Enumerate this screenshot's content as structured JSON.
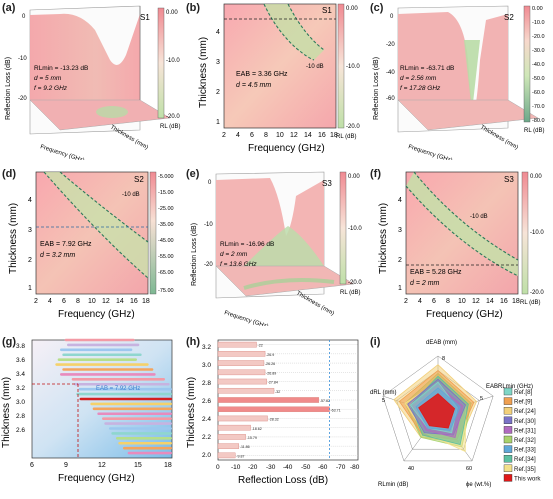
{
  "panels": {
    "a": {
      "label": "(a)",
      "sample": "S1",
      "zlabel": "Reflection Loss (dB)",
      "xlabel": "Frequency (GHz)",
      "ylabel": "Thickness (mm)",
      "zticks": [
        "0",
        "-10",
        "-20"
      ],
      "cbar_ticks": [
        "0.00",
        "-10.0",
        "-20.0"
      ],
      "cbar_label": "RL (dB)",
      "rl_min": "RLmin = -13.23 dB",
      "d": "d = 5 mm",
      "f": "f = 9.2 GHz"
    },
    "b": {
      "label": "(b)",
      "sample": "S1",
      "xlabel": "Frequency (GHz)",
      "ylabel": "Thickness (mm)",
      "xticks": [
        "2",
        "4",
        "6",
        "8",
        "10",
        "12",
        "14",
        "16",
        "18"
      ],
      "yticks": [
        "4",
        "3",
        "2",
        "1"
      ],
      "cbar_ticks": [
        "0.00",
        "-10.0",
        "-20.0"
      ],
      "cbar_label": "RL (dB)",
      "contour": "-10 dB",
      "eab": "EAB = 3.36 GHz",
      "d": "d = 4.5 mm"
    },
    "c": {
      "label": "(c)",
      "sample": "S2",
      "zlabel": "Reflection Loss (dB)",
      "xlabel": "Frequency (GHz)",
      "ylabel": "Thickness (mm)",
      "zticks": [
        "0",
        "-20",
        "-40",
        "-60"
      ],
      "cbar_ticks": [
        "0.00",
        "-10.0",
        "-20.0",
        "-30.0",
        "-40.0",
        "-50.0",
        "-60.0",
        "-70.0",
        "-80.0"
      ],
      "cbar_label": "RL (dB)",
      "rl_min": "RLmin = -63.71 dB",
      "d": "d = 2.56 mm",
      "f": "f = 17.28 GHz"
    },
    "d": {
      "label": "(d)",
      "sample": "S2",
      "xlabel": "Frequency (GHz)",
      "ylabel": "Thickness (mm)",
      "xticks": [
        "2",
        "4",
        "6",
        "8",
        "10",
        "12",
        "14",
        "16",
        "18"
      ],
      "yticks": [
        "4",
        "3",
        "2",
        "1"
      ],
      "cbar_ticks": [
        "-5.000",
        "-15.00",
        "-25.00",
        "-35.00",
        "-45.00",
        "-55.00",
        "-65.00",
        "-75.00"
      ],
      "contour": "-10 dB",
      "eab": "EAB = 7.92 GHz",
      "d": "d = 3.2 mm"
    },
    "e": {
      "label": "(e)",
      "sample": "S3",
      "zlabel": "Reflection Loss (dB)",
      "xlabel": "Frequency (GHz)",
      "ylabel": "Thickness (mm)",
      "zticks": [
        "0",
        "-10",
        "-20"
      ],
      "cbar_ticks": [
        "0.00",
        "-10.0",
        "-20.0"
      ],
      "cbar_label": "RL (dB)",
      "rl_min": "RLmin = -16.96 dB",
      "d": "d = 2 mm",
      "f": "f = 13.6 GHz"
    },
    "f": {
      "label": "(f)",
      "sample": "S3",
      "xlabel": "Frequency (GHz)",
      "ylabel": "Thickness (mm)",
      "xticks": [
        "2",
        "4",
        "6",
        "8",
        "10",
        "12",
        "14",
        "16",
        "18"
      ],
      "yticks": [
        "4",
        "3",
        "2",
        "1"
      ],
      "cbar_ticks": [
        "0.00",
        "-10.0",
        "-20.0"
      ],
      "cbar_label": "RL (dB)",
      "contour": "-10 dB",
      "eab": "EAB = 5.28 GHz",
      "d": "d = 2 mm"
    },
    "g": {
      "label": "(g)",
      "xlabel": "Frequency (GHz)",
      "ylabel": "Thickness (mm)",
      "xticks": [
        "6",
        "9",
        "12",
        "15",
        "18"
      ],
      "yticks": [
        "3.8",
        "3.6",
        "3.4",
        "3.2",
        "3.0",
        "2.8",
        "2.6"
      ],
      "annotation": "EAB = 7.92 GHz"
    },
    "h": {
      "label": "(h)",
      "xlabel": "Reflection Loss (dB)",
      "ylabel": "Thickness (mm)",
      "xticks": [
        "0",
        "-10",
        "-20",
        "-30",
        "-40",
        "-50",
        "-60",
        "-70",
        "-80"
      ],
      "yticks": [
        "3.2",
        "3.0",
        "2.8",
        "2.6",
        "2.4",
        "2.2",
        "2.0"
      ]
    },
    "i": {
      "label": "(i)",
      "axes": [
        "dEAB (mm)",
        "EABRLmin (GHz)",
        "ϕe (wt.%)",
        "RLmin (dB)",
        "dRL (mm)"
      ],
      "ring_values": [
        "8",
        "5",
        "60",
        "40",
        "5"
      ],
      "legend": [
        "Ref.[8]",
        "Ref.[9]",
        "Ref.[24]",
        "Ref.[30]",
        "Ref.[31]",
        "Ref.[32]",
        "Ref.[33]",
        "Ref.[34]",
        "Ref.[35]",
        "This work"
      ]
    }
  },
  "colors": {
    "map_pink": "#f2a2a8",
    "map_green": "#b7d9a4",
    "contour": "#2c7a5a",
    "this_work": "#e01818"
  },
  "chart_data": [
    {
      "type": "bar",
      "title": "",
      "xlabel": "Reflection Loss (dB)",
      "ylabel": "Thickness (mm)",
      "categories": [
        "3.2",
        "3.1",
        "3.0",
        "2.9",
        "2.8",
        "2.7",
        "2.6",
        "2.5",
        "2.4",
        "2.3",
        "2.2",
        "2.1",
        "2.0"
      ],
      "values": [
        -22,
        -26.9,
        -26.26,
        -26.89,
        -27.84,
        -32,
        -57.62,
        -63.71,
        -28.32,
        -18.62,
        -15.79,
        -11.86,
        -9.87
      ],
      "value_labels": [
        "-22",
        "-26.9",
        "-26.26",
        "-26.89",
        "-27.84",
        "-32",
        "-57.62",
        "-63.71",
        "-28.32",
        "-18.62",
        "-15.79",
        "-11.86",
        "-9.87"
      ],
      "label_overrides": {
        "3.1": "-26.9",
        "2.7": "-32",
        "2.6": "-57.62",
        "2.5": "-63.71"
      },
      "xlim": [
        0,
        -80
      ],
      "reference_line_x": -63.71
    },
    {
      "type": "bar",
      "title": "",
      "subtype": "range",
      "xlabel": "Frequency (GHz)",
      "ylabel": "Thickness (mm)",
      "categories": [
        "3.8",
        "3.75",
        "3.7",
        "3.65",
        "3.6",
        "3.55",
        "3.5",
        "3.45",
        "3.4",
        "3.35",
        "3.3",
        "3.25",
        "3.2",
        "3.15",
        "3.1",
        "3.05",
        "3.0",
        "2.95",
        "2.9",
        "2.85",
        "2.8",
        "2.75",
        "2.7",
        "2.65"
      ],
      "ranges": [
        [
          8.8,
          14.8
        ],
        [
          9.0,
          15.2
        ],
        [
          8.4,
          14.6
        ],
        [
          8.6,
          15.4
        ],
        [
          8.2,
          15.0
        ],
        [
          8.0,
          16.0
        ],
        [
          8.6,
          16.4
        ],
        [
          8.4,
          16.6
        ],
        [
          9.4,
          17.4
        ],
        [
          9.6,
          17.8
        ],
        [
          10.0,
          18.0
        ],
        [
          9.8,
          18.0
        ],
        [
          10.08,
          18.0
        ],
        [
          11.0,
          18.0
        ],
        [
          11.2,
          18.0
        ],
        [
          11.6,
          18.0
        ],
        [
          12.0,
          18.0
        ],
        [
          12.2,
          18.0
        ],
        [
          12.6,
          18.0
        ],
        [
          12.8,
          18.0
        ],
        [
          13.2,
          18.0
        ],
        [
          13.4,
          18.0
        ],
        [
          13.8,
          18.0
        ],
        [
          14.2,
          18.0
        ]
      ],
      "highlight_thickness": "3.2",
      "annotation": "EAB = 7.92 GHz",
      "xlim": [
        6,
        18
      ],
      "ylim": [
        2.6,
        3.8
      ]
    },
    {
      "type": "radar",
      "title": "",
      "axes": [
        "dEAB (mm)",
        "EABRLmin (GHz)",
        "ϕe (wt.%)",
        "RLmin (dB)",
        "dRL (mm)"
      ],
      "series": [
        {
          "name": "Ref.[8]",
          "color": "#7fd6c7",
          "values": [
            0.55,
            0.35,
            0.4,
            0.3,
            0.5
          ]
        },
        {
          "name": "Ref.[9]",
          "color": "#f0a050",
          "values": [
            0.75,
            0.65,
            0.55,
            0.45,
            0.7
          ]
        },
        {
          "name": "Ref.[24]",
          "color": "#f2d07a",
          "values": [
            0.85,
            0.7,
            0.6,
            0.5,
            0.8
          ]
        },
        {
          "name": "Ref.[30]",
          "color": "#7a72c8",
          "values": [
            0.6,
            0.5,
            0.45,
            0.4,
            0.55
          ]
        },
        {
          "name": "Ref.[31]",
          "color": "#b06abf",
          "values": [
            0.5,
            0.45,
            0.5,
            0.35,
            0.45
          ]
        },
        {
          "name": "Ref.[32]",
          "color": "#a9d26b",
          "values": [
            0.7,
            0.6,
            0.7,
            0.5,
            0.6
          ]
        },
        {
          "name": "Ref.[33]",
          "color": "#5fa8d8",
          "values": [
            0.45,
            0.4,
            0.35,
            0.3,
            0.4
          ]
        },
        {
          "name": "Ref.[34]",
          "color": "#5cc0a0",
          "values": [
            0.65,
            0.55,
            0.65,
            0.45,
            0.5
          ]
        },
        {
          "name": "Ref.[35]",
          "color": "#f3e08a",
          "values": [
            0.55,
            0.5,
            0.8,
            0.4,
            0.6
          ]
        },
        {
          "name": "This work",
          "color": "#e01818",
          "values": [
            0.35,
            0.3,
            0.3,
            0.25,
            0.35
          ]
        }
      ]
    }
  ]
}
